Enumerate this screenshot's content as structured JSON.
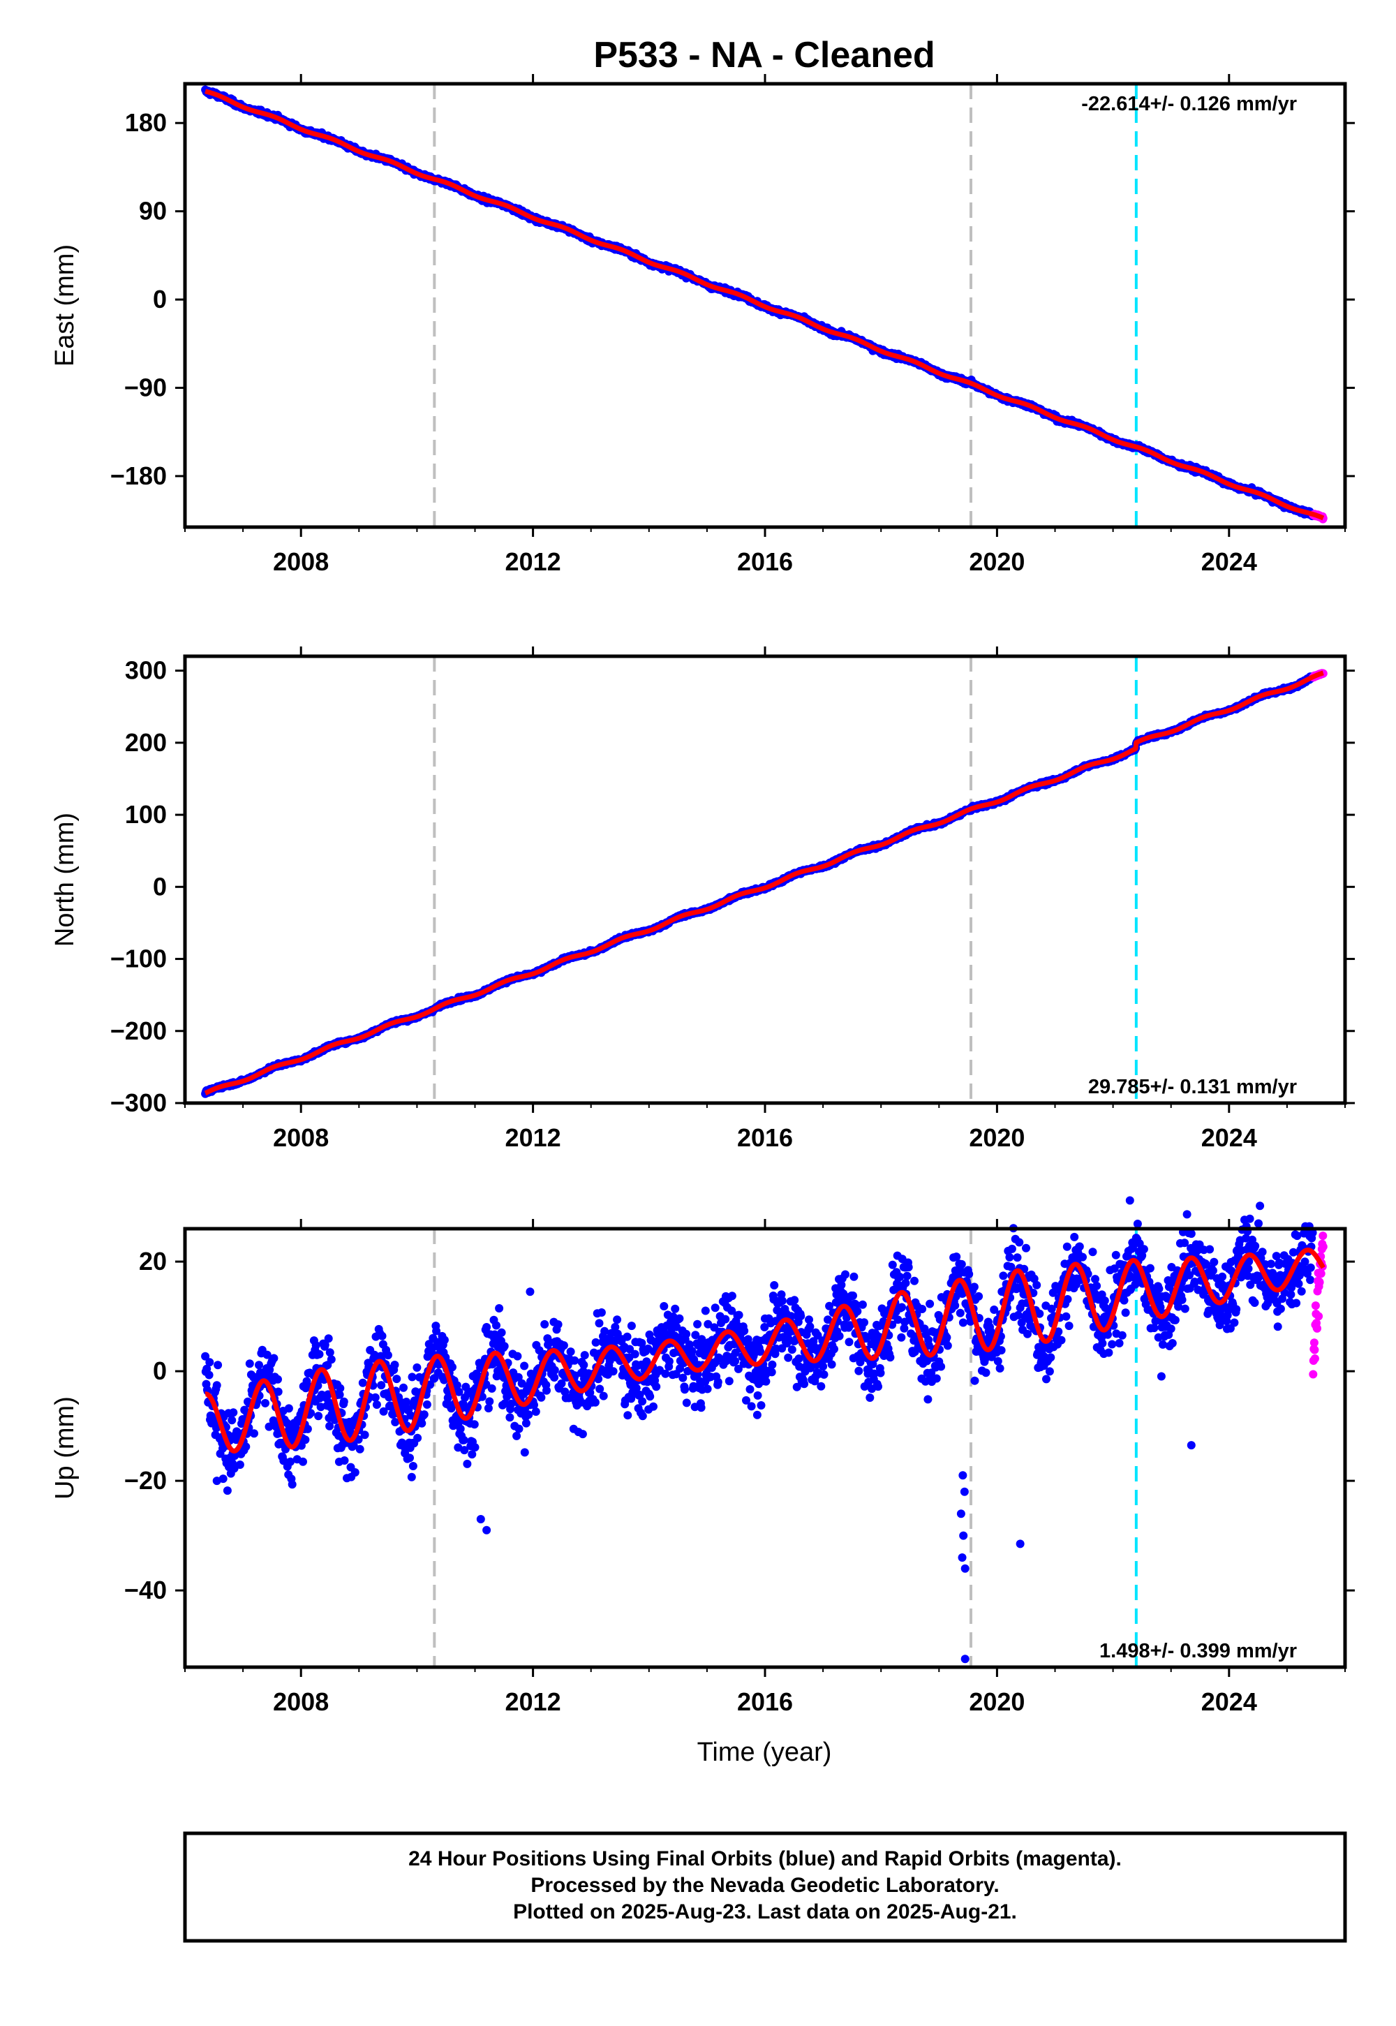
{
  "figure": {
    "title": "P533  - NA - Cleaned",
    "xlabel": "Time (year)",
    "footer": [
      "24 Hour Positions Using Final Orbits (blue) and Rapid Orbits (magenta).",
      "Processed by the Nevada Geodetic Laboratory.",
      "Plotted on 2025-Aug-23. Last data on 2025-Aug-21."
    ],
    "colors": {
      "final_orbits": "#0000ff",
      "rapid_orbits": "#ff00ff",
      "model_fit": "#ff0000",
      "equipment_change": "#bfbfbf",
      "earthquake": "#00e5ff"
    }
  },
  "chart_data": [
    {
      "type": "scatter",
      "panel": "east",
      "ylabel": "East (mm)",
      "rate_text": "-22.614+/- 0.126 mm/yr",
      "xlim": [
        2006.0,
        2026.0
      ],
      "ylim": [
        -232,
        220
      ],
      "xticks": [
        2008,
        2012,
        2016,
        2020,
        2024
      ],
      "xtick_labels": [
        "2008",
        "2012",
        "2016",
        "2020",
        "2024"
      ],
      "yticks": [
        180,
        90,
        0,
        -90,
        -180
      ],
      "ytick_labels": [
        "180",
        "90",
        "0",
        "−90",
        "−180"
      ],
      "vlines_gray": [
        2010.3,
        2019.55
      ],
      "vlines_cyan": [
        2022.4
      ],
      "final": {
        "start": 2006.35,
        "end": 2025.45,
        "y_start": 212,
        "rate": -22.614,
        "seasonal_amp": 1.2,
        "noise": 2.0
      },
      "rapid": {
        "start": 2025.45,
        "end": 2025.63
      },
      "fit_start": 2006.35,
      "fit_end": 2025.63
    },
    {
      "type": "scatter",
      "panel": "north",
      "ylabel": "North (mm)",
      "rate_text": "29.785+/- 0.131 mm/yr",
      "xlim": [
        2006.0,
        2026.0
      ],
      "ylim": [
        -300,
        320
      ],
      "xticks": [
        2008,
        2012,
        2016,
        2020,
        2024
      ],
      "xtick_labels": [
        "2008",
        "2012",
        "2016",
        "2020",
        "2024"
      ],
      "yticks": [
        300,
        200,
        100,
        0,
        -100,
        -200,
        -300
      ],
      "ytick_labels": [
        "300",
        "200",
        "100",
        "0",
        "−100",
        "−200",
        "−300"
      ],
      "vlines_gray": [
        2010.3,
        2019.55
      ],
      "vlines_cyan": [
        2022.4
      ],
      "final": {
        "start": 2006.35,
        "end": 2025.45,
        "y_start": -287,
        "rate": 29.785,
        "seasonal_amp": 2.0,
        "noise": 2.0
      },
      "rapid": {
        "start": 2025.45,
        "end": 2025.63
      },
      "offset": {
        "year": 2022.4,
        "value": 8
      },
      "fit_start": 2006.35,
      "fit_end": 2025.63
    },
    {
      "type": "scatter",
      "panel": "up",
      "ylabel": "Up (mm)",
      "rate_text": "1.498+/- 0.399 mm/yr",
      "xlim": [
        2006.0,
        2026.0
      ],
      "ylim": [
        -54,
        26
      ],
      "xticks": [
        2008,
        2012,
        2016,
        2020,
        2024
      ],
      "xtick_labels": [
        "2008",
        "2012",
        "2016",
        "2020",
        "2024"
      ],
      "yticks": [
        20,
        0,
        -20,
        -40
      ],
      "ytick_labels": [
        "20",
        "0",
        "−20",
        "−40"
      ],
      "vlines_gray": [
        2010.3,
        2019.55
      ],
      "vlines_cyan": [
        2022.4
      ],
      "final": {
        "start": 2006.35,
        "end": 2025.45,
        "y_start": -9.5,
        "rate": 1.498,
        "seasonal_amp": 5.5,
        "noise": 3.6
      },
      "rapid": {
        "start": 2025.45,
        "end": 2025.63,
        "y_range": [
          4,
          24
        ]
      },
      "outliers": [
        [
          2011.2,
          -29
        ],
        [
          2011.1,
          -27
        ],
        [
          2019.4,
          -34
        ],
        [
          2019.45,
          -36
        ],
        [
          2019.42,
          -30
        ],
        [
          2019.38,
          -26
        ],
        [
          2019.44,
          -22
        ],
        [
          2019.41,
          -19
        ],
        [
          2019.45,
          -52.5
        ],
        [
          2020.4,
          -31.5
        ],
        [
          2011.95,
          14.5
        ],
        [
          2023.35,
          -13.5
        ],
        [
          2006.55,
          -20
        ]
      ]
    }
  ]
}
